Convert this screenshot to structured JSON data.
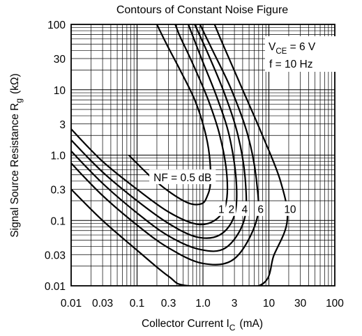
{
  "chart_data": {
    "type": "line",
    "title": "Contours of Constant Noise Figure",
    "xlabel": {
      "main": "Collector Current  I",
      "sub": "C",
      "unit": "(mA)"
    },
    "ylabel": {
      "main": "Signal Source Resistance  R",
      "sub": "g",
      "unit": "(kΩ)"
    },
    "x_scale": "log",
    "y_scale": "log",
    "xlim": [
      0.01,
      100
    ],
    "ylim": [
      0.01,
      100
    ],
    "grid": true,
    "xticks": [
      {
        "value": 0.01,
        "label": "0.01"
      },
      {
        "value": 0.03,
        "label": "0.03"
      },
      {
        "value": 0.1,
        "label": "0.1"
      },
      {
        "value": 0.3,
        "label": "0.3"
      },
      {
        "value": 1,
        "label": "1.0"
      },
      {
        "value": 3,
        "label": "3"
      },
      {
        "value": 10,
        "label": "10"
      },
      {
        "value": 30,
        "label": "30"
      },
      {
        "value": 100,
        "label": "100"
      }
    ],
    "yticks": [
      {
        "value": 0.01,
        "label": "0.01"
      },
      {
        "value": 0.03,
        "label": "0.03"
      },
      {
        "value": 0.1,
        "label": "0.1"
      },
      {
        "value": 0.3,
        "label": "0.3"
      },
      {
        "value": 1,
        "label": "1.0"
      },
      {
        "value": 3,
        "label": "3"
      },
      {
        "value": 10,
        "label": "10"
      },
      {
        "value": 30,
        "label": "30"
      },
      {
        "value": 100,
        "label": "100"
      }
    ],
    "conditions": {
      "line1": {
        "main": "V",
        "sub": "CE",
        "rest": " = 6 V"
      },
      "line2": "f = 10 Hz"
    },
    "series": [
      {
        "name": "NF = 0.5 dB",
        "points": [
          [
            0.075,
            1.0
          ],
          [
            0.15,
            0.5
          ],
          [
            0.3,
            0.28
          ],
          [
            0.6,
            0.185
          ],
          [
            0.95,
            0.18
          ],
          [
            1.15,
            0.23
          ],
          [
            1.3,
            0.38
          ],
          [
            1.25,
            1.0
          ],
          [
            1.05,
            2.5
          ],
          [
            0.75,
            7
          ],
          [
            0.45,
            20
          ],
          [
            0.28,
            50
          ],
          [
            0.2,
            100
          ]
        ]
      },
      {
        "name": "1",
        "points": [
          [
            0.01,
            2.5
          ],
          [
            0.03,
            0.8
          ],
          [
            0.1,
            0.3
          ],
          [
            0.3,
            0.135
          ],
          [
            0.8,
            0.088
          ],
          [
            1.5,
            0.1
          ],
          [
            2.2,
            0.17
          ],
          [
            2.3,
            0.5
          ],
          [
            1.8,
            2.0
          ],
          [
            1.2,
            7
          ],
          [
            0.7,
            25
          ],
          [
            0.45,
            65
          ],
          [
            0.38,
            100
          ]
        ]
      },
      {
        "name": "2",
        "points": [
          [
            0.01,
            1.7
          ],
          [
            0.03,
            0.55
          ],
          [
            0.1,
            0.2
          ],
          [
            0.3,
            0.09
          ],
          [
            0.8,
            0.056
          ],
          [
            1.8,
            0.06
          ],
          [
            3.0,
            0.12
          ],
          [
            3.2,
            0.4
          ],
          [
            2.5,
            2.0
          ],
          [
            1.6,
            8
          ],
          [
            0.95,
            30
          ],
          [
            0.6,
            100
          ]
        ]
      },
      {
        "name": "4",
        "points": [
          [
            0.01,
            1.15
          ],
          [
            0.03,
            0.37
          ],
          [
            0.1,
            0.13
          ],
          [
            0.3,
            0.058
          ],
          [
            0.9,
            0.036
          ],
          [
            2.2,
            0.038
          ],
          [
            4.2,
            0.1
          ],
          [
            4.4,
            0.4
          ],
          [
            3.4,
            2.0
          ],
          [
            2.1,
            9
          ],
          [
            1.2,
            35
          ],
          [
            0.75,
            100
          ]
        ]
      },
      {
        "name": "6",
        "points": [
          [
            0.01,
            0.75
          ],
          [
            0.03,
            0.24
          ],
          [
            0.1,
            0.085
          ],
          [
            0.3,
            0.038
          ],
          [
            1.0,
            0.022
          ],
          [
            3.0,
            0.026
          ],
          [
            6.5,
            0.1
          ],
          [
            6.5,
            0.4
          ],
          [
            4.8,
            2.0
          ],
          [
            2.7,
            10
          ],
          [
            1.4,
            40
          ],
          [
            0.9,
            100
          ]
        ]
      },
      {
        "name": "10",
        "points": [
          [
            0.01,
            0.3
          ],
          [
            0.03,
            0.1
          ],
          [
            0.1,
            0.035
          ],
          [
            0.3,
            0.014
          ],
          [
            0.6,
            0.01
          ],
          [
            7,
            0.01
          ],
          [
            12,
            0.03
          ],
          [
            19,
            0.1
          ],
          [
            15,
            0.4
          ],
          [
            8,
            2.0
          ],
          [
            4,
            10
          ],
          [
            2,
            50
          ],
          [
            1.5,
            100
          ]
        ]
      }
    ],
    "annotations": [
      {
        "text": "NF = 0.5 dB",
        "x": 0.49,
        "y": 0.46
      },
      {
        "text": "1",
        "x": 1.9,
        "y": 0.15
      },
      {
        "text": "2",
        "x": 2.7,
        "y": 0.15
      },
      {
        "text": "4",
        "x": 4.3,
        "y": 0.15
      },
      {
        "text": "6",
        "x": 7.5,
        "y": 0.15
      },
      {
        "text": "10",
        "x": 21,
        "y": 0.15
      }
    ]
  }
}
